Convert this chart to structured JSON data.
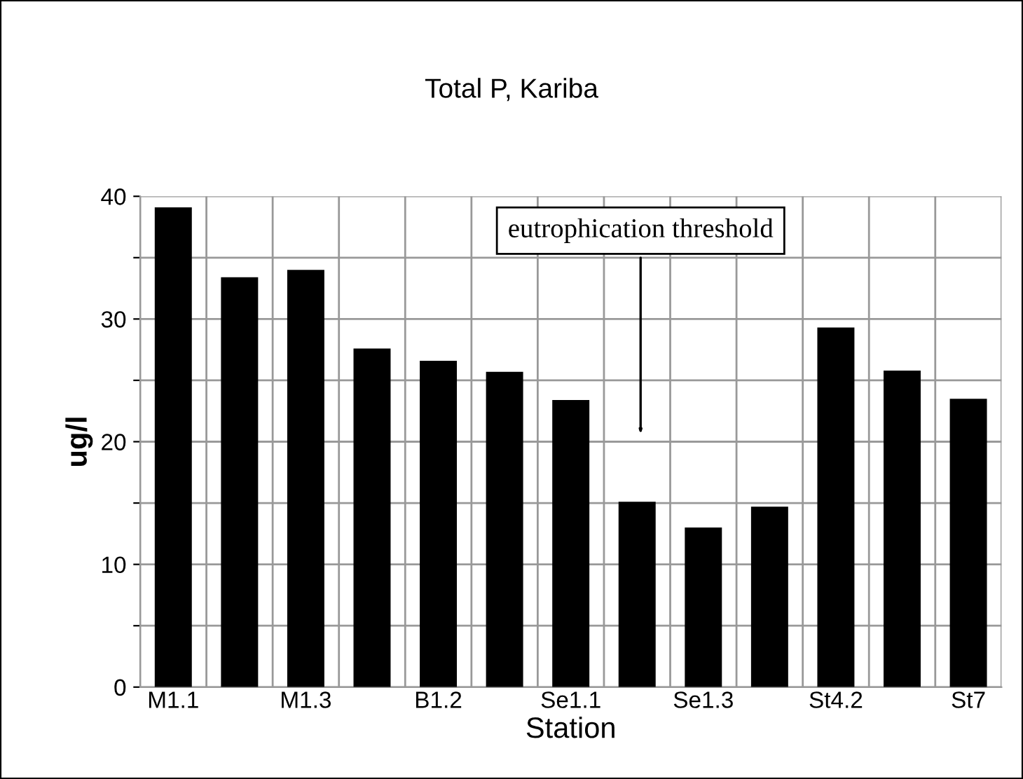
{
  "chart_data": {
    "type": "bar",
    "title": "Total P, Kariba",
    "xlabel": "Station",
    "ylabel": "ug/l",
    "categories": [
      "M1.1",
      null,
      "M1.3",
      null,
      "B1.2",
      null,
      "Se1.1",
      null,
      "Se1.3",
      null,
      "St4.2",
      null,
      "St7"
    ],
    "values": [
      39.1,
      33.4,
      34.0,
      27.6,
      26.6,
      25.7,
      23.4,
      15.1,
      13.0,
      14.7,
      29.3,
      25.8,
      23.5
    ],
    "color": "#000000",
    "ylim": [
      0,
      40
    ],
    "yticks": [
      0,
      {
        "value": 5,
        "label": null
      },
      10,
      {
        "value": 15,
        "label": null
      },
      20,
      {
        "value": 25,
        "label": null
      },
      30,
      {
        "value": 35,
        "label": null
      },
      40
    ],
    "grid": true,
    "annotations": [
      "eutrophication threshold"
    ]
  }
}
